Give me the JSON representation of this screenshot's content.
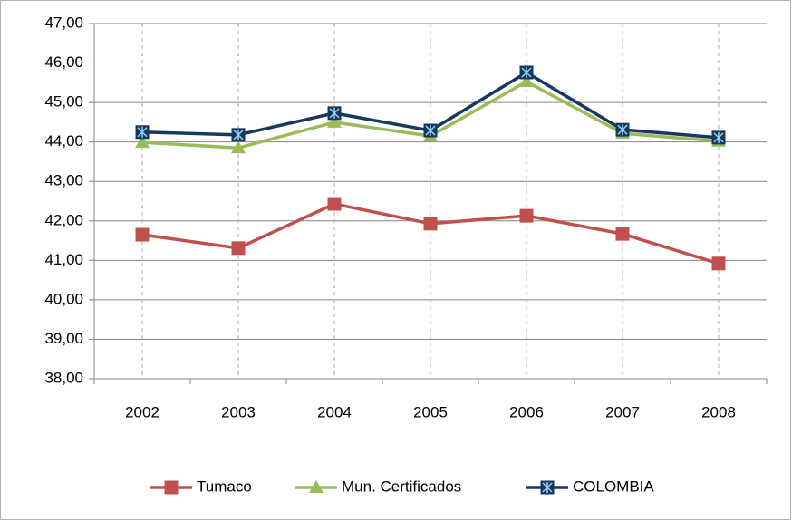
{
  "chart_data": {
    "type": "line",
    "categories": [
      "2002",
      "2003",
      "2004",
      "2005",
      "2006",
      "2007",
      "2008"
    ],
    "series": [
      {
        "name": "Tumaco",
        "color": "#c0504d",
        "marker": "square",
        "values": [
          41.65,
          41.31,
          42.43,
          41.93,
          42.13,
          41.67,
          40.92
        ]
      },
      {
        "name": "Mun. Certificados",
        "color": "#9bbb59",
        "marker": "triangle",
        "values": [
          43.99,
          43.85,
          44.5,
          44.15,
          45.53,
          44.22,
          44.02
        ]
      },
      {
        "name": "COLOMBIA",
        "color": "#17375e",
        "marker": "star-square",
        "values": [
          44.25,
          44.18,
          44.73,
          44.29,
          45.76,
          44.31,
          44.11
        ]
      }
    ],
    "ylim": [
      38,
      47
    ],
    "yticks": [
      {
        "value": 38,
        "label": "38,00"
      },
      {
        "value": 39,
        "label": "39,00"
      },
      {
        "value": 40,
        "label": "40,00"
      },
      {
        "value": 41,
        "label": "41,00"
      },
      {
        "value": 42,
        "label": "42,00"
      },
      {
        "value": 43,
        "label": "43,00"
      },
      {
        "value": 44,
        "label": "44,00"
      },
      {
        "value": 45,
        "label": "45,00"
      },
      {
        "value": 46,
        "label": "46,00"
      },
      {
        "value": 47,
        "label": "47,00"
      }
    ],
    "grid": true,
    "legend": "bottom"
  }
}
